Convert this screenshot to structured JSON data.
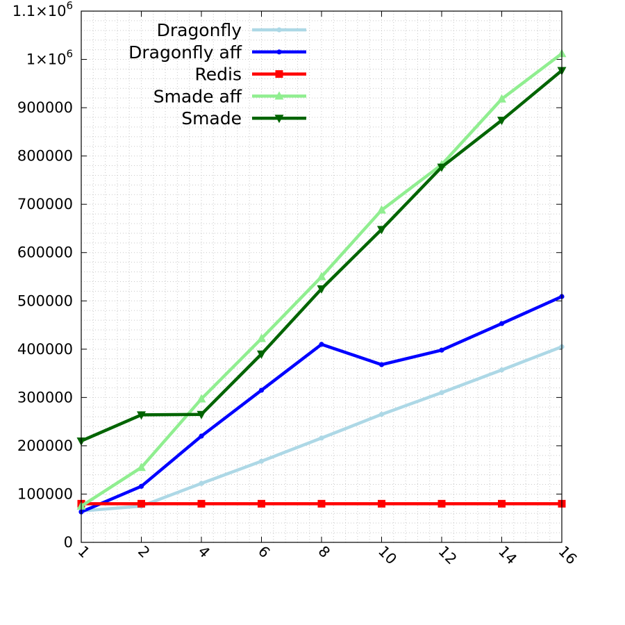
{
  "chart_data": {
    "type": "line",
    "title": "",
    "xlabel": "",
    "ylabel": "",
    "x": [
      1,
      2,
      4,
      6,
      8,
      10,
      12,
      14,
      16
    ],
    "x_tick_labels": [
      "1",
      "2",
      "4",
      "6",
      "8",
      "10",
      "12",
      "14",
      "16"
    ],
    "y_tick_labels": [
      {
        "value": 0,
        "mantissa": "0",
        "exponent": ""
      },
      {
        "value": 100000,
        "mantissa": "100000",
        "exponent": ""
      },
      {
        "value": 200000,
        "mantissa": "200000",
        "exponent": ""
      },
      {
        "value": 300000,
        "mantissa": "300000",
        "exponent": ""
      },
      {
        "value": 400000,
        "mantissa": "400000",
        "exponent": ""
      },
      {
        "value": 500000,
        "mantissa": "500000",
        "exponent": ""
      },
      {
        "value": 600000,
        "mantissa": "600000",
        "exponent": ""
      },
      {
        "value": 700000,
        "mantissa": "700000",
        "exponent": ""
      },
      {
        "value": 800000,
        "mantissa": "800000",
        "exponent": ""
      },
      {
        "value": 900000,
        "mantissa": "900000",
        "exponent": ""
      },
      {
        "value": 1000000,
        "mantissa": "1×10",
        "exponent": "6"
      },
      {
        "value": 1100000,
        "mantissa": "1.1×10",
        "exponent": "6"
      }
    ],
    "ylim": [
      0,
      1100000
    ],
    "grid": "minor-dotted",
    "legend_position": "top-left",
    "series": [
      {
        "name": "Dragonfly",
        "color": "#add8e6",
        "marker": "dot",
        "values": [
          65000,
          75000,
          122000,
          168000,
          216000,
          265000,
          310000,
          357000,
          405000
        ]
      },
      {
        "name": "Dragonfly aff",
        "color": "#0000ff",
        "marker": "dot",
        "values": [
          63000,
          116000,
          220000,
          315000,
          410000,
          368000,
          398000,
          453000,
          509000
        ]
      },
      {
        "name": "Redis",
        "color": "#ff0000",
        "marker": "square",
        "values": [
          80000,
          80000,
          80000,
          80000,
          80000,
          80000,
          80000,
          80000,
          80000
        ]
      },
      {
        "name": "Smade aff",
        "color": "#90ee90",
        "marker": "triangle-up",
        "values": [
          75000,
          155000,
          297000,
          422000,
          550000,
          688000,
          782000,
          918000,
          1012000
        ]
      },
      {
        "name": "Smade",
        "color": "#006400",
        "marker": "triangle-down",
        "values": [
          210000,
          264000,
          265000,
          390000,
          525000,
          648000,
          777000,
          874000,
          977000
        ]
      }
    ]
  }
}
